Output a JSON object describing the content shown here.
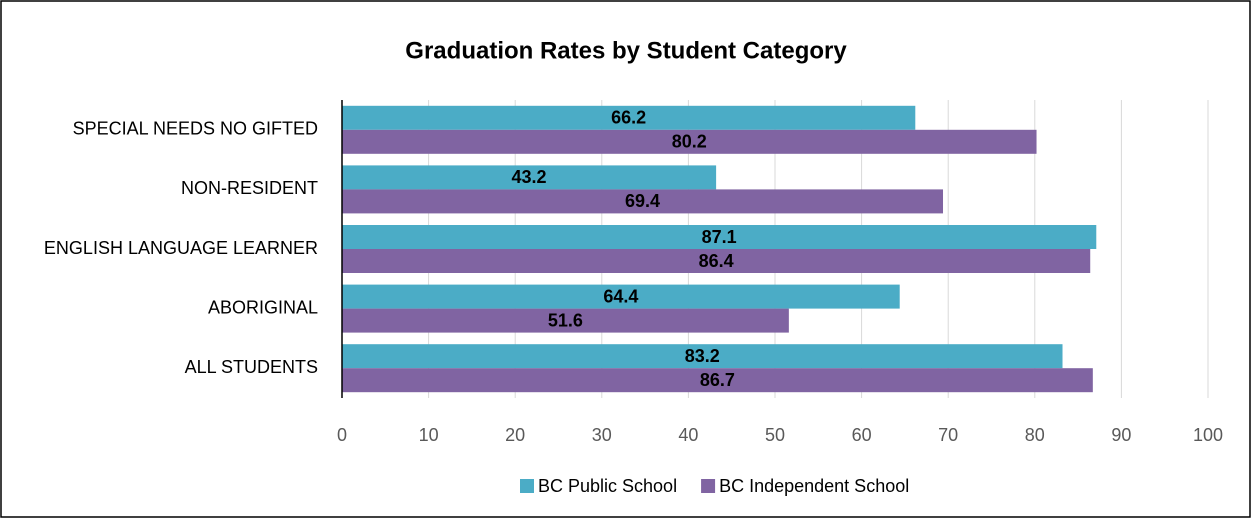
{
  "chart_data": {
    "type": "bar",
    "orientation": "horizontal",
    "title": "Graduation Rates by Student Category",
    "categories": [
      "SPECIAL NEEDS NO GIFTED",
      "NON-RESIDENT",
      "ENGLISH LANGUAGE LEARNER",
      "ABORIGINAL",
      "ALL STUDENTS"
    ],
    "series": [
      {
        "name": "BC Public School",
        "color": "#4bacc6",
        "values": [
          66.2,
          43.2,
          87.1,
          64.4,
          83.2
        ]
      },
      {
        "name": "BC Independent School",
        "color": "#8064a2",
        "values": [
          80.2,
          69.4,
          86.4,
          51.6,
          86.7
        ]
      }
    ],
    "xlim": [
      0,
      100
    ],
    "xticks": [
      0,
      10,
      20,
      30,
      40,
      50,
      60,
      70,
      80,
      90,
      100
    ],
    "grid": true,
    "legend": "bottom",
    "data_labels": true
  }
}
